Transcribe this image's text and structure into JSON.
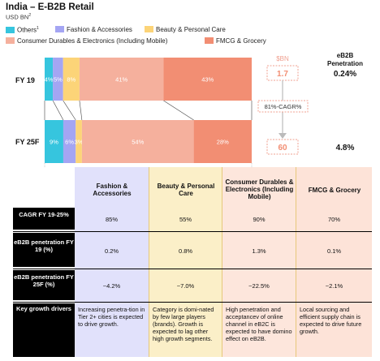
{
  "title": "India – E-B2B Retail",
  "subtitle": "USD BN",
  "subtitle_sup": "2",
  "legend": [
    {
      "label": "Others",
      "sup": "1",
      "color": "#36c5de"
    },
    {
      "label": "Fashion & Accessories",
      "sup": "",
      "color": "#a4a5f3"
    },
    {
      "label": "Beauty & Personal Care",
      "sup": "",
      "color": "#fcd478"
    },
    {
      "label": "Consumer Durables & Electronics (Including Mobile)",
      "sup": "",
      "color": "#f5b09d"
    },
    {
      "label": "FMCG & Grocery",
      "sup": "",
      "color": "#f28e73"
    }
  ],
  "chart_data": {
    "type": "bar",
    "orientation": "horizontal",
    "stacked": true,
    "percent": true,
    "categories": [
      "FY 19",
      "FY 25F"
    ],
    "series": [
      {
        "name": "Others",
        "values": [
          4,
          9
        ],
        "labels": [
          "4%",
          "9%"
        ],
        "color": "#36c5de"
      },
      {
        "name": "Fashion & Accessories",
        "values": [
          5,
          6
        ],
        "labels": [
          "5%",
          "6%"
        ],
        "color": "#a4a5f3"
      },
      {
        "name": "Beauty & Personal Care",
        "values": [
          8,
          3
        ],
        "labels": [
          "8%",
          "3%"
        ],
        "color": "#fcd478"
      },
      {
        "name": "Consumer Durables & Electronics (Including Mobile)",
        "values": [
          41,
          54
        ],
        "labels": [
          "41%",
          "54%"
        ],
        "color": "#f5b09d"
      },
      {
        "name": "FMCG & Grocery",
        "values": [
          43,
          28
        ],
        "labels": [
          "43%",
          "28%"
        ],
        "color": "#f28e73"
      }
    ],
    "market_size": {
      "header": "$BN",
      "values": [
        "1.7",
        "60"
      ],
      "cagr_label": "81%-CAGR%"
    },
    "penetration": {
      "header": "eB2B Penetration",
      "values": [
        "0.24%",
        "4.8%"
      ]
    }
  },
  "table": {
    "columns": [
      "Fashion & Accessories",
      "Beauty & Personal Care",
      "Consumer Durables & Electronics (Including Mobile)",
      "FMCG & Grocery"
    ],
    "column_colors": [
      "#e1e1fb",
      "#fbefc8",
      "#fde6dc",
      "#fde3d8"
    ],
    "rows": [
      {
        "label": "CAGR FY 19-25%",
        "values": [
          "85%",
          "55%",
          "90%",
          "70%"
        ]
      },
      {
        "label": "eB2B penetration FY 19 (%)",
        "values": [
          "0.2%",
          "0.8%",
          "1.3%",
          "0.1%"
        ]
      },
      {
        "label": "eB2B penetration FY 25F (%)",
        "values": [
          "~4.2%",
          "~7.0%",
          "~22.5%",
          "~2.1%"
        ]
      },
      {
        "label": "Key growth drivers",
        "values": [
          "Increasing penetra-tion in Tier 2+ cities is expected to drive growth.",
          "Category is domi-nated by few large players (brands). Growth is expected to lag other high growth segments.",
          "High penetration and acceptancev of online channel in eB2C is expected to have domino effect on eB2B.",
          "Local sourcing and efficient supply chain is expected to drive future growth."
        ]
      }
    ]
  }
}
